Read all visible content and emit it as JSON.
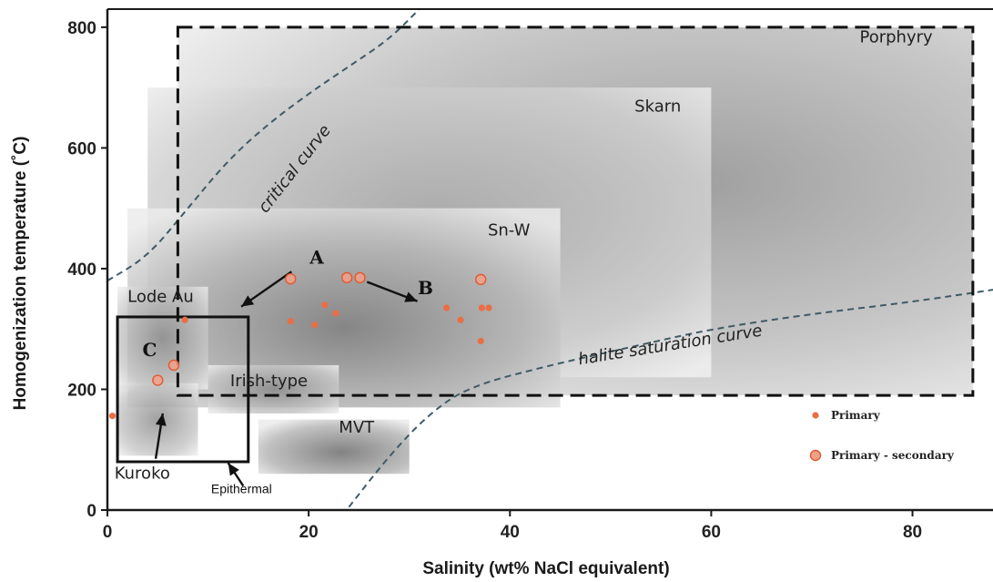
{
  "chart_data": {
    "type": "scatter",
    "title": "",
    "xlabel": "Salinity (wt% NaCl equivalent)",
    "ylabel": "Homogenization temperature (˚C)",
    "xlim": [
      0,
      88
    ],
    "ylim": [
      0,
      830
    ],
    "x_ticks": [
      0,
      20,
      40,
      60,
      80
    ],
    "y_ticks": [
      0,
      200,
      400,
      600,
      800
    ],
    "regions": [
      {
        "name": "Porphyry",
        "x": [
          7,
          86
        ],
        "y": [
          190,
          800
        ],
        "border": "dashed"
      },
      {
        "name": "Skarn",
        "x": [
          4,
          60
        ],
        "y": [
          220,
          700
        ],
        "border": "none"
      },
      {
        "name": "Sn-W",
        "x": [
          2,
          45
        ],
        "y": [
          170,
          500
        ],
        "border": "none"
      },
      {
        "name": "Lode Au",
        "x": [
          1,
          10
        ],
        "y": [
          200,
          370
        ],
        "border": "none"
      },
      {
        "name": "Irish-type",
        "x": [
          10,
          23
        ],
        "y": [
          160,
          240
        ],
        "border": "none"
      },
      {
        "name": "MVT",
        "x": [
          15,
          30
        ],
        "y": [
          60,
          150
        ],
        "border": "none"
      },
      {
        "name": "Kuroko",
        "x": [
          1,
          9
        ],
        "y": [
          90,
          210
        ],
        "border": "none"
      },
      {
        "name": "Epithermal",
        "x": [
          1,
          14
        ],
        "y": [
          80,
          320
        ],
        "border": "solid"
      }
    ],
    "curves": [
      {
        "name": "critical curve",
        "x": [
          0,
          4,
          8,
          12,
          16,
          20,
          24,
          28,
          31
        ],
        "y": [
          380,
          420,
          500,
          580,
          640,
          690,
          735,
          780,
          830
        ]
      },
      {
        "name": "halite saturation curve",
        "x": [
          24,
          28,
          32,
          36,
          44,
          52,
          60,
          70,
          80,
          88
        ],
        "y": [
          5,
          90,
          160,
          205,
          240,
          270,
          300,
          325,
          345,
          365
        ]
      }
    ],
    "group_labels": [
      "A",
      "B",
      "C"
    ],
    "series": [
      {
        "name": "Primary",
        "x": [
          0.5,
          7.7,
          18.2,
          20.6,
          21.6,
          22.7,
          33.7,
          35.1,
          37.2,
          37.9,
          37.1
        ],
        "y": [
          156,
          315,
          313,
          307,
          340,
          326,
          335,
          315,
          335,
          335,
          280
        ]
      },
      {
        "name": "Primary - secondary",
        "x": [
          5,
          6.6,
          18.2,
          23.8,
          25.1,
          37.1
        ],
        "y": [
          215,
          240,
          383,
          385,
          385,
          382
        ]
      }
    ],
    "colors": {
      "Primary": "#ea6e45",
      "Primary - secondary": "#f2a088"
    },
    "legend_position": "bottom-right",
    "grid": false
  }
}
